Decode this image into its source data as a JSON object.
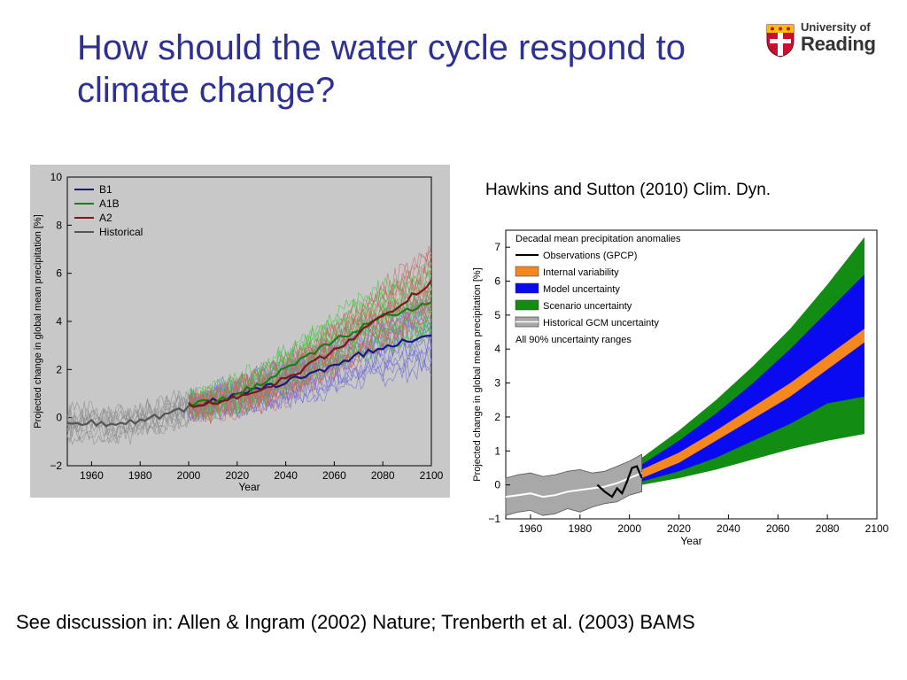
{
  "slide": {
    "title": "How should the water cycle respond to climate change?",
    "citation": "Hawkins and Sutton (2010) Clim. Dyn.",
    "footer": "See discussion in: Allen & Ingram (2002) Nature; Trenberth et al. (2003) BAMS",
    "title_color": "#2e3192"
  },
  "logo": {
    "line1": "University of",
    "line2": "Reading",
    "crest_colors": {
      "red": "#c8102e",
      "gold": "#f2c100"
    }
  },
  "chart_data": [
    {
      "type": "line",
      "background": "#c8c8c8",
      "xlabel": "Year",
      "ylabel": "Projected change in global mean precipitation  [%]",
      "xlim": [
        1950,
        2100
      ],
      "ylim": [
        -2,
        10
      ],
      "xticks": [
        1960,
        1980,
        2000,
        2020,
        2040,
        2060,
        2080,
        2100
      ],
      "yticks": [
        -2,
        0,
        2,
        4,
        6,
        8,
        10
      ],
      "ytick_labels": [
        "−2",
        "0",
        "2",
        "4",
        "6",
        "8",
        "10"
      ],
      "legend_position": "top-left",
      "grid": false,
      "series": [
        {
          "name": "B1",
          "color": "#1a1a7a",
          "x": [
            2000,
            2010,
            2020,
            2030,
            2040,
            2050,
            2060,
            2070,
            2080,
            2090,
            2100
          ],
          "values": [
            0.5,
            0.7,
            0.9,
            1.2,
            1.5,
            1.8,
            2.2,
            2.6,
            2.9,
            3.2,
            3.5
          ]
        },
        {
          "name": "A1B",
          "color": "#1e7b1e",
          "x": [
            2000,
            2010,
            2020,
            2030,
            2040,
            2050,
            2060,
            2070,
            2080,
            2090,
            2100
          ],
          "values": [
            0.5,
            0.7,
            1.0,
            1.4,
            2.0,
            2.6,
            3.2,
            3.7,
            4.2,
            4.5,
            4.7
          ]
        },
        {
          "name": "A2",
          "color": "#7a1a1a",
          "x": [
            2000,
            2010,
            2020,
            2030,
            2040,
            2050,
            2060,
            2070,
            2080,
            2090,
            2100
          ],
          "values": [
            0.5,
            0.6,
            0.9,
            1.2,
            1.6,
            2.2,
            2.8,
            3.5,
            4.2,
            4.9,
            5.6
          ]
        },
        {
          "name": "Historical",
          "color": "#555555",
          "x": [
            1950,
            1960,
            1970,
            1980,
            1990,
            2000
          ],
          "values": [
            -0.3,
            -0.2,
            -0.3,
            -0.1,
            0.1,
            0.4
          ]
        }
      ],
      "member_colors": {
        "B1": "#6a6ad8",
        "A1B": "#3dc43d",
        "A2": "#c86464",
        "Historical": "#8a8a8a"
      }
    },
    {
      "type": "area",
      "xlabel": "Year",
      "ylabel": "Projected change in global mean precipitation  [%]",
      "xlim": [
        1950,
        2100
      ],
      "ylim": [
        -1,
        7.5
      ],
      "xticks": [
        1960,
        1980,
        2000,
        2020,
        2040,
        2060,
        2080,
        2100
      ],
      "yticks": [
        -1,
        0,
        1,
        2,
        3,
        4,
        5,
        6,
        7
      ],
      "ytick_labels": [
        "−1",
        "0",
        "1",
        "2",
        "3",
        "4",
        "5",
        "6",
        "7"
      ],
      "legend_position": "top-left",
      "legend_title": "Decadal mean precipitation anomalies",
      "legend_note": "All 90% uncertainty ranges",
      "legend_items": [
        {
          "label": "Observations (GPCP)",
          "color": "#000000",
          "kind": "line"
        },
        {
          "label": "Internal variability",
          "color": "#f5871f",
          "kind": "box"
        },
        {
          "label": "Model uncertainty",
          "color": "#0a0af0",
          "kind": "box"
        },
        {
          "label": "Scenario uncertainty",
          "color": "#128c12",
          "kind": "box"
        },
        {
          "label": "Historical GCM uncertainty",
          "color": "#a8a8a8",
          "kind": "hist"
        }
      ],
      "projection_x": [
        2005,
        2020,
        2035,
        2050,
        2065,
        2080,
        2095
      ],
      "scenario_upper": [
        0.8,
        1.6,
        2.5,
        3.5,
        4.6,
        5.9,
        7.3
      ],
      "model_upper": [
        0.6,
        1.3,
        2.1,
        3.0,
        4.0,
        5.1,
        6.2
      ],
      "internal_upper": [
        0.45,
        0.95,
        1.6,
        2.3,
        3.0,
        3.8,
        4.6
      ],
      "internal_lower": [
        0.2,
        0.65,
        1.3,
        1.95,
        2.6,
        3.4,
        4.2
      ],
      "model_lower": [
        0.1,
        0.4,
        0.8,
        1.3,
        1.8,
        2.4,
        2.6
      ],
      "scenario_lower": [
        0.0,
        0.2,
        0.45,
        0.75,
        1.05,
        1.3,
        1.5
      ],
      "historical_x": [
        1950,
        1955,
        1960,
        1965,
        1970,
        1975,
        1980,
        1985,
        1990,
        1995,
        2000,
        2005
      ],
      "historical_upper": [
        0.2,
        0.3,
        0.35,
        0.25,
        0.3,
        0.4,
        0.45,
        0.35,
        0.4,
        0.55,
        0.7,
        0.9
      ],
      "historical_lower": [
        -0.9,
        -0.8,
        -0.75,
        -0.9,
        -0.85,
        -0.7,
        -0.8,
        -0.65,
        -0.55,
        -0.5,
        -0.3,
        -0.2
      ],
      "historical_mean": [
        -0.35,
        -0.3,
        -0.25,
        -0.35,
        -0.3,
        -0.2,
        -0.15,
        -0.1,
        -0.05,
        0.05,
        0.2,
        0.35
      ],
      "observations_x": [
        1987,
        1990,
        1993,
        1995,
        1997,
        1999,
        2001,
        2003,
        2005
      ],
      "observations": [
        0.0,
        -0.2,
        -0.35,
        -0.1,
        -0.25,
        0.1,
        0.5,
        0.55,
        0.2
      ]
    }
  ]
}
